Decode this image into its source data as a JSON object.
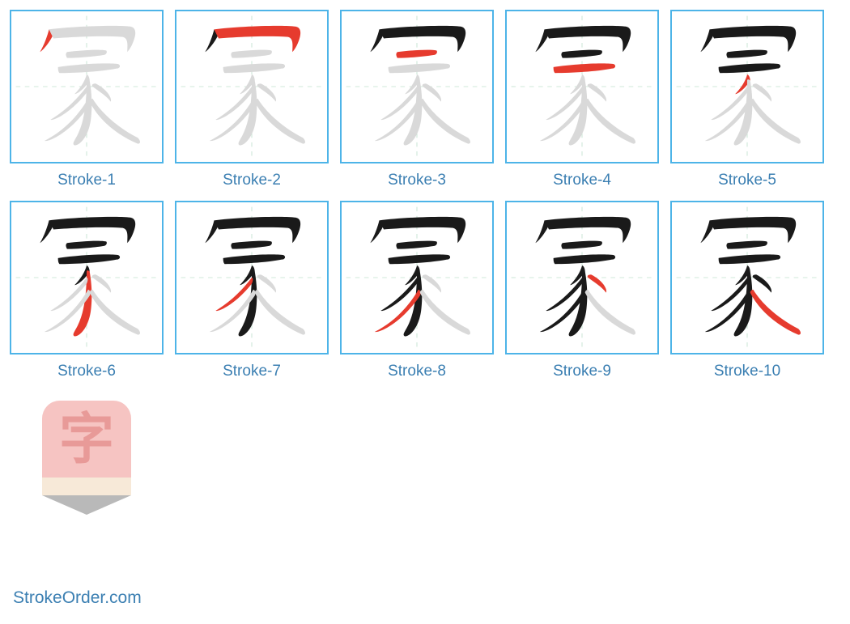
{
  "grid": {
    "border_color": "#4db4e8",
    "caption_color": "#3b7fb2",
    "guide_color": "#cfe8d8",
    "black": "#1a1a1a",
    "red": "#e63b2e",
    "faded": "#d9d9d9",
    "strokes": [
      {
        "label": "Stroke-1",
        "hl": 1
      },
      {
        "label": "Stroke-2",
        "hl": 2
      },
      {
        "label": "Stroke-3",
        "hl": 3
      },
      {
        "label": "Stroke-4",
        "hl": 4
      },
      {
        "label": "Stroke-5",
        "hl": 5
      },
      {
        "label": "Stroke-6",
        "hl": 6
      },
      {
        "label": "Stroke-7",
        "hl": 7
      },
      {
        "label": "Stroke-8",
        "hl": 8
      },
      {
        "label": "Stroke-9",
        "hl": 9
      },
      {
        "label": "Stroke-10",
        "hl": 10
      }
    ]
  },
  "logo": {
    "char": "字",
    "top_bg": "#f6c4c2",
    "char_color": "#e89a98",
    "mid_bg": "#f7e9d8",
    "tip_color": "#b9b9b9"
  },
  "brand": {
    "text": "StrokeOrder.com",
    "color": "#3b7fb2"
  }
}
